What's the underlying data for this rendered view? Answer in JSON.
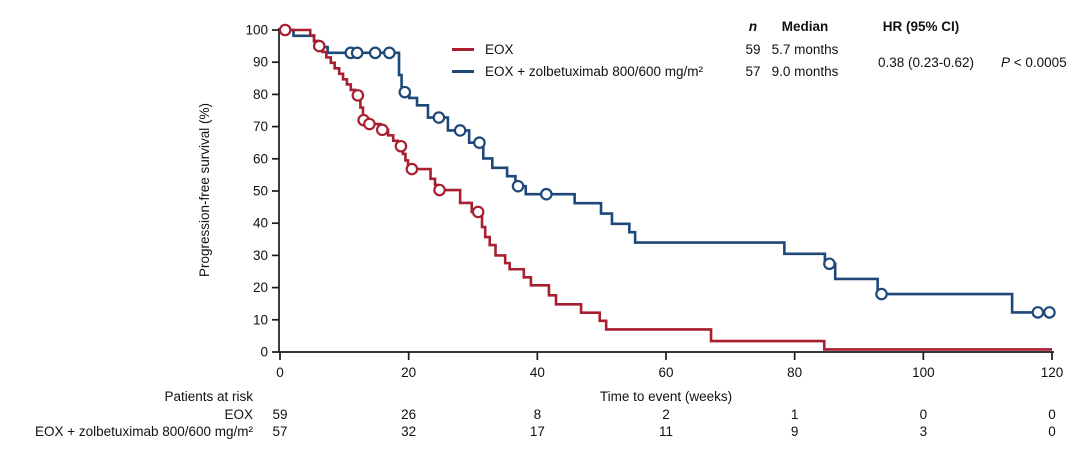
{
  "chart_data": {
    "type": "line",
    "subtype": "kaplan-meier-step",
    "xlabel": "Time to event (weeks)",
    "ylabel": "Progression-free survival (%)",
    "xlim": [
      0,
      120
    ],
    "ylim": [
      0,
      100
    ],
    "x_ticks": [
      0,
      20,
      40,
      60,
      80,
      100,
      120
    ],
    "y_ticks": [
      0,
      10,
      20,
      30,
      40,
      50,
      60,
      70,
      80,
      90,
      100
    ],
    "grid": false,
    "legend_position": "top-center",
    "series": [
      {
        "name": "EOX",
        "color": "#A81F30",
        "steps": [
          [
            0,
            100
          ],
          [
            4.7,
            98.3
          ],
          [
            5.3,
            96.6
          ],
          [
            5.9,
            94.9
          ],
          [
            6.6,
            93.2
          ],
          [
            7.2,
            91.5
          ],
          [
            7.9,
            89.8
          ],
          [
            8.5,
            88.1
          ],
          [
            9.2,
            86.4
          ],
          [
            9.8,
            84.7
          ],
          [
            10.4,
            83.1
          ],
          [
            11.0,
            81.4
          ],
          [
            11.7,
            79.7
          ],
          [
            12.5,
            75.9
          ],
          [
            12.9,
            72.0
          ],
          [
            13.5,
            70.8
          ],
          [
            15.6,
            69.0
          ],
          [
            16.8,
            67.3
          ],
          [
            17.6,
            65.6
          ],
          [
            18.3,
            63.9
          ],
          [
            19.1,
            61.5
          ],
          [
            19.5,
            59.5
          ],
          [
            19.9,
            57.8
          ],
          [
            20.3,
            56.8
          ],
          [
            23.4,
            53.8
          ],
          [
            24.1,
            51.9
          ],
          [
            24.5,
            50.3
          ],
          [
            28.0,
            46.3
          ],
          [
            29.8,
            43.5
          ],
          [
            31.4,
            38.8
          ],
          [
            31.9,
            35.7
          ],
          [
            32.6,
            33.2
          ],
          [
            33.5,
            30.0
          ],
          [
            35.0,
            27.6
          ],
          [
            35.7,
            25.7
          ],
          [
            37.9,
            23.2
          ],
          [
            39.0,
            20.7
          ],
          [
            41.8,
            17.6
          ],
          [
            42.9,
            14.8
          ],
          [
            46.8,
            12.2
          ],
          [
            49.7,
            9.7
          ],
          [
            50.7,
            7.0
          ],
          [
            67.0,
            3.4
          ],
          [
            84.6,
            0.8
          ]
        ],
        "censors": [
          [
            0.8,
            100
          ],
          [
            6.1,
            95.0
          ],
          [
            12.1,
            79.7
          ],
          [
            13.0,
            72.0
          ],
          [
            13.9,
            70.8
          ],
          [
            15.9,
            69.0
          ],
          [
            18.8,
            63.9
          ],
          [
            20.5,
            56.8
          ],
          [
            24.8,
            50.3
          ],
          [
            30.8,
            43.5
          ]
        ],
        "end_week": 120
      },
      {
        "name": "EOX + zolbetuximab 800/600 mg/m²",
        "color": "#1D4878",
        "steps": [
          [
            0,
            100
          ],
          [
            2.1,
            98.2
          ],
          [
            5.3,
            96.5
          ],
          [
            6.2,
            94.7
          ],
          [
            7.4,
            92.9
          ],
          [
            18.5,
            86.0
          ],
          [
            18.9,
            80.7
          ],
          [
            20.1,
            78.9
          ],
          [
            21.3,
            76.6
          ],
          [
            23.0,
            72.8
          ],
          [
            26.1,
            68.8
          ],
          [
            29.4,
            65.0
          ],
          [
            31.6,
            60.1
          ],
          [
            33.0,
            57.2
          ],
          [
            35.3,
            54.6
          ],
          [
            36.6,
            51.5
          ],
          [
            38.2,
            49.0
          ],
          [
            45.8,
            46.2
          ],
          [
            49.9,
            43.0
          ],
          [
            51.6,
            39.8
          ],
          [
            54.3,
            37.2
          ],
          [
            55.2,
            34.0
          ],
          [
            78.4,
            30.5
          ],
          [
            84.7,
            27.4
          ],
          [
            86.3,
            22.7
          ],
          [
            92.9,
            18.0
          ],
          [
            113.8,
            12.3
          ]
        ],
        "censors": [
          [
            11.0,
            92.9
          ],
          [
            12.0,
            92.9
          ],
          [
            14.8,
            92.9
          ],
          [
            17.0,
            92.9
          ],
          [
            19.4,
            80.7
          ],
          [
            24.7,
            72.8
          ],
          [
            28.0,
            68.8
          ],
          [
            31.0,
            65.0
          ],
          [
            37.0,
            51.5
          ],
          [
            41.4,
            49.0
          ],
          [
            85.4,
            27.4
          ],
          [
            93.5,
            18.0
          ],
          [
            117.8,
            12.3
          ],
          [
            119.6,
            12.3
          ]
        ],
        "end_week": 120
      }
    ]
  },
  "legend": {
    "entries": [
      {
        "label": "EOX",
        "color": "#A81F30"
      },
      {
        "label": "EOX + zolbetuximab 800/600 mg/m²",
        "color": "#1D4878"
      }
    ]
  },
  "stats": {
    "col_n": "n",
    "col_median": "Median",
    "col_hr": "HR (95% CI)",
    "rows": [
      {
        "n": "59",
        "median": "5.7 months"
      },
      {
        "n": "57",
        "median": "9.0 months"
      }
    ],
    "hr_value": "0.38 (0.23-0.62)",
    "p_italic": "P",
    "p_rest": " < 0.0005"
  },
  "risk_table": {
    "title": "Patients at risk",
    "time_label": "Time to event (weeks)",
    "rows": [
      {
        "label": "EOX",
        "values": [
          "59",
          "26",
          "8",
          "2",
          "1",
          "0",
          "0"
        ]
      },
      {
        "label": "EOX + zolbetuximab 800/600 mg/m²",
        "values": [
          "57",
          "32",
          "17",
          "11",
          "9",
          "3",
          "0"
        ]
      }
    ]
  },
  "colors": {
    "axis": "#1a1a1a",
    "red": "#A81F30",
    "blue": "#1D4878"
  }
}
